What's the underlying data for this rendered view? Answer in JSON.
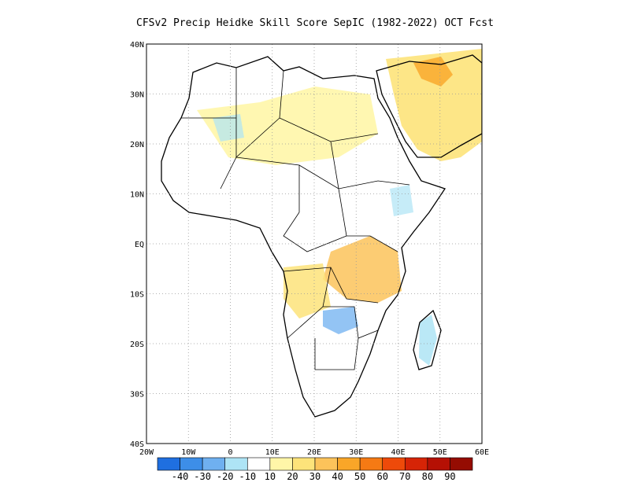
{
  "title": "CFSv2 Precip Heidke Skill Score SepIC (1982-2022) OCT Fcst",
  "map": {
    "lat_labels": [
      "40N",
      "30N",
      "20N",
      "10N",
      "EQ",
      "10S",
      "20S",
      "30S",
      "40S"
    ],
    "lon_labels": [
      "20W",
      "10W",
      "0",
      "10E",
      "20E",
      "30E",
      "40E",
      "50E",
      "60E"
    ],
    "grid": "dotted",
    "coastlines": true,
    "political_boundaries": true
  },
  "colorbar": {
    "labels": [
      "-40",
      "-30",
      "-20",
      "-10",
      "10",
      "20",
      "30",
      "40",
      "50",
      "60",
      "70",
      "80",
      "90"
    ],
    "colors": [
      "#1f6fe0",
      "#3d8ee8",
      "#6fb0f0",
      "#aee4f5",
      "#ffffff",
      "#fff6a8",
      "#fde37a",
      "#fcc35a",
      "#f9a628",
      "#f57a14",
      "#ee4a0a",
      "#d62406",
      "#b51004",
      "#950c02"
    ]
  },
  "regions": [
    {
      "name": "ne-africa-arabia-positive",
      "color": "#fde37a"
    },
    {
      "name": "east-africa-positive",
      "color": "#fcc35a"
    },
    {
      "name": "angola-positive",
      "color": "#fde37a"
    },
    {
      "name": "zambia-negative",
      "color": "#6fb0f0"
    },
    {
      "name": "madagascar-negative",
      "color": "#aee4f5"
    }
  ]
}
